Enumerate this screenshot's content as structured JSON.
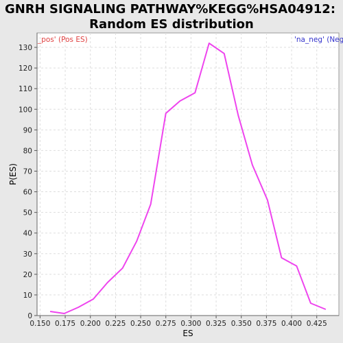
{
  "title_lines": [
    "GNRH SIGNALING PATHWAY%KEGG%HSA04912:",
    "Random ES distribution"
  ],
  "corner_labels": {
    "left": "_pos' (Pos ES)",
    "right": "'na_neg' (Neg"
  },
  "colors": {
    "background": "#e8e8e8",
    "plot_bg": "#ffffff",
    "line": "#ee44ee",
    "grid": "#dddddd",
    "left_label": "#e04040",
    "right_label": "#3333cc"
  },
  "chart_data": {
    "type": "line",
    "xlabel": "ES",
    "ylabel": "P(ES)",
    "xlim": [
      0.147,
      0.447
    ],
    "ylim": [
      0,
      137
    ],
    "grid": true,
    "x_ticks": [
      0.15,
      0.175,
      0.2,
      0.225,
      0.25,
      0.275,
      0.3,
      0.325,
      0.35,
      0.375,
      0.4,
      0.425
    ],
    "x_tick_labels": [
      "0.150",
      "0.175",
      "0.200",
      "0.225",
      "0.250",
      "0.275",
      "0.300",
      "0.325",
      "0.350",
      "0.375",
      "0.400",
      "0.425"
    ],
    "y_ticks": [
      0,
      10,
      20,
      30,
      40,
      50,
      60,
      70,
      80,
      90,
      100,
      110,
      120,
      130
    ],
    "y_tick_labels": [
      "0",
      "10",
      "20",
      "30",
      "40",
      "50",
      "60",
      "70",
      "80",
      "90",
      "100",
      "110",
      "120",
      "130"
    ],
    "series": [
      {
        "x": [
          0.16,
          0.174,
          0.188,
          0.203,
          0.217,
          0.232,
          0.246,
          0.26,
          0.275,
          0.289,
          0.304,
          0.318,
          0.333,
          0.347,
          0.361,
          0.376,
          0.39,
          0.405,
          0.419,
          0.434
        ],
        "y": [
          2,
          1,
          4,
          8,
          16,
          23,
          36,
          54,
          98,
          104,
          108,
          132,
          127,
          97,
          73,
          56,
          28,
          24,
          6,
          3
        ]
      }
    ]
  }
}
